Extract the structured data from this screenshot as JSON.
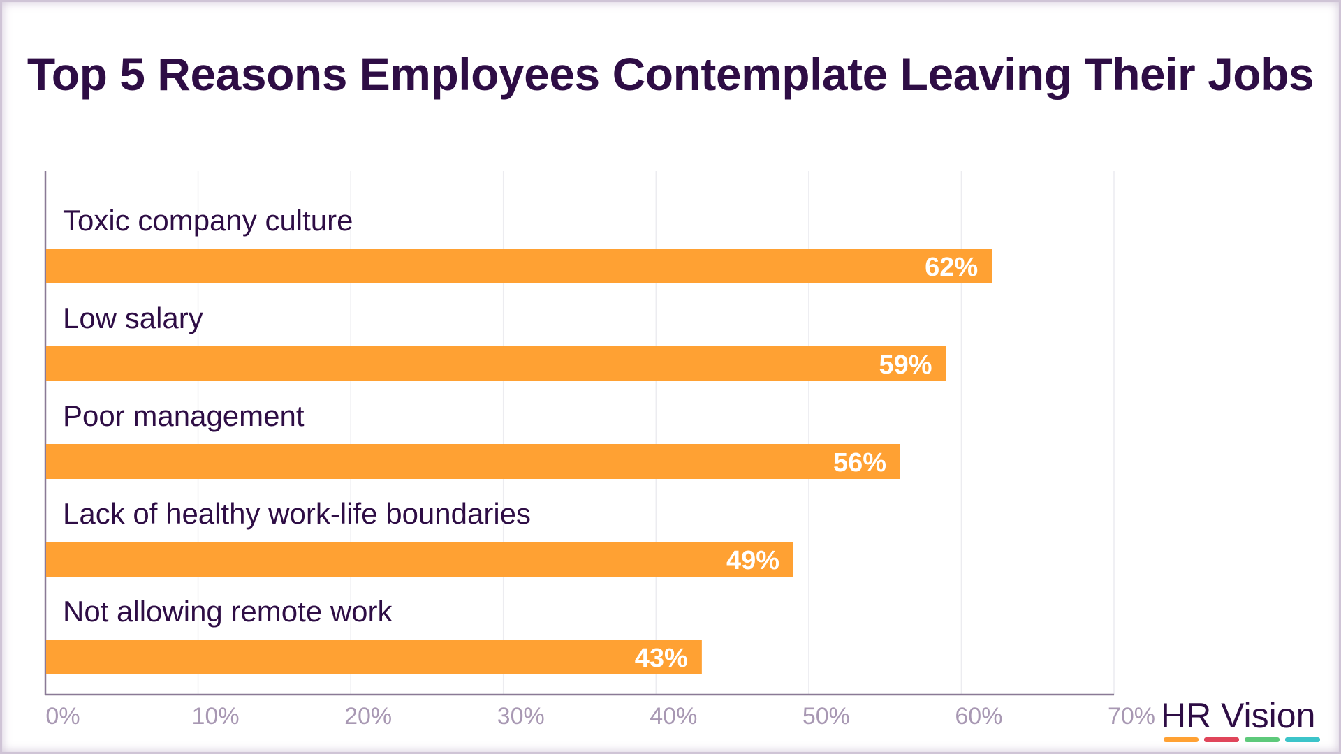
{
  "chart_data": {
    "type": "bar",
    "orientation": "horizontal",
    "title": "Top 5 Reasons Employees Contemplate Leaving Their Jobs",
    "categories": [
      "Toxic company culture",
      "Low salary",
      "Poor management",
      "Lack of healthy work-life boundaries",
      "Not allowing remote work"
    ],
    "values": [
      62,
      59,
      56,
      49,
      43
    ],
    "value_labels": [
      "62%",
      "59%",
      "56%",
      "49%",
      "43%"
    ],
    "xlim": [
      0,
      70
    ],
    "x_ticks": [
      0,
      10,
      20,
      30,
      40,
      50,
      60,
      70
    ],
    "x_tick_labels": [
      "0%",
      "10%",
      "20%",
      "30%",
      "40%",
      "50%",
      "60%",
      "70%"
    ],
    "grid": true,
    "legend": "none",
    "bar_color": "#ffa133",
    "title_color": "#2e0d45",
    "tick_color": "#a898b3"
  },
  "branding": {
    "logo_text": "HR Vision",
    "logo_bar_colors": [
      "#ffa133",
      "#e0455a",
      "#5dc97a",
      "#3cc4c9"
    ]
  }
}
